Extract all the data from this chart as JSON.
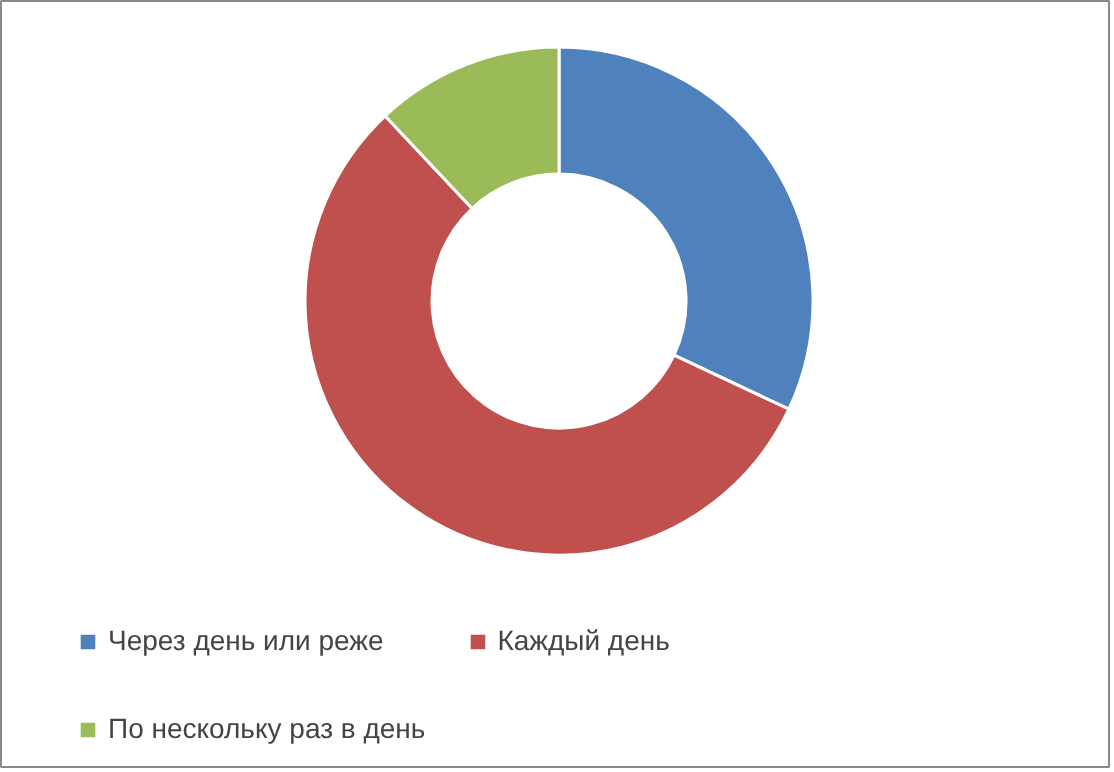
{
  "chart_data": {
    "type": "donut",
    "categories": [
      "Через день или реже",
      "Каждый день",
      "По нескольку раз в день"
    ],
    "values": [
      32,
      56,
      12
    ],
    "colors": [
      "#4f81bd",
      "#c0504d",
      "#9bbb59"
    ],
    "legend": "bottom"
  }
}
